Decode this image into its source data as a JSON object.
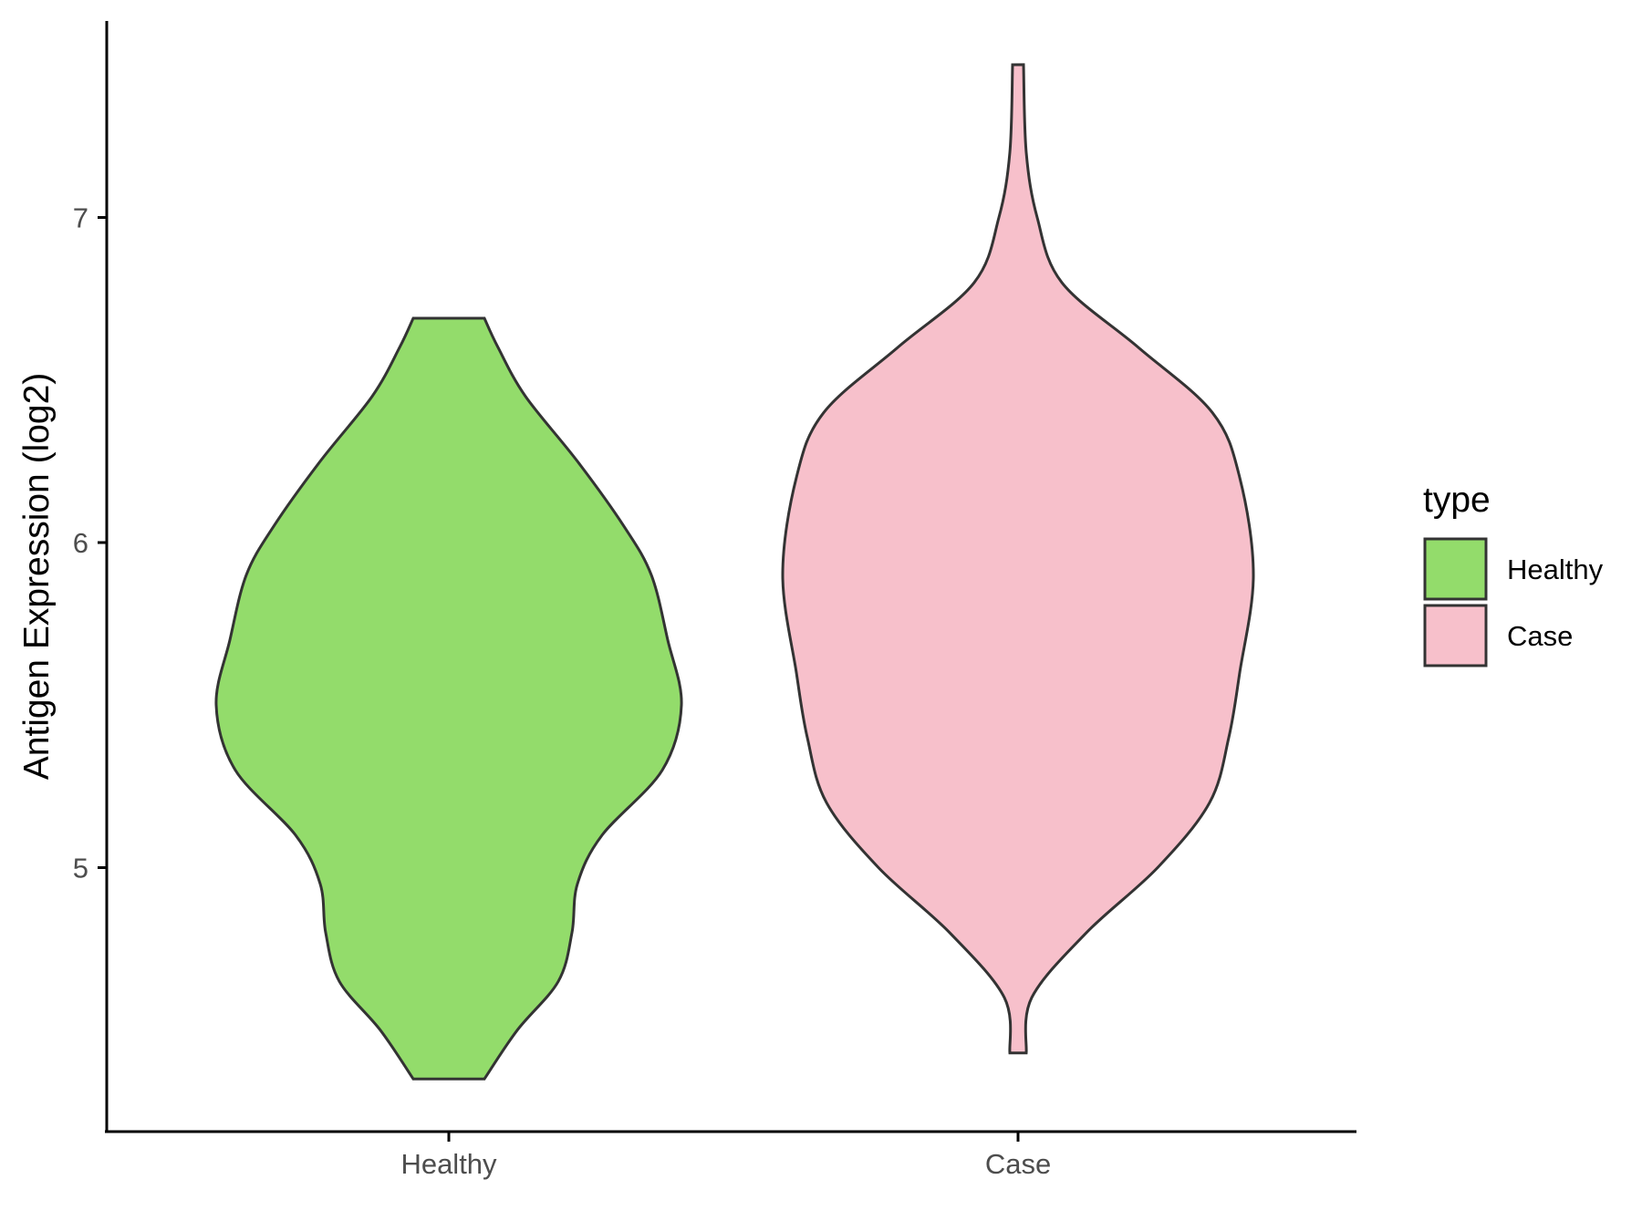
{
  "chart_data": {
    "type": "violin",
    "title": "",
    "xlabel": "",
    "ylabel": "Antigen Expression (log2)",
    "categories": [
      "Healthy",
      "Case"
    ],
    "y_ticks": [
      5,
      6,
      7
    ],
    "ylim": [
      4.2,
      7.6
    ],
    "grid": false,
    "legend": {
      "title": "type",
      "position": "right",
      "entries": [
        {
          "label": "Healthy",
          "color": "#93dc6b"
        },
        {
          "label": "Case",
          "color": "#f7c0cb"
        }
      ]
    },
    "series": [
      {
        "name": "Healthy",
        "color": "#93dc6b",
        "min": 4.35,
        "max": 6.69,
        "density_profile": [
          [
            4.35,
            0.13
          ],
          [
            4.5,
            0.25
          ],
          [
            4.65,
            0.4
          ],
          [
            4.8,
            0.45
          ],
          [
            4.95,
            0.47
          ],
          [
            5.1,
            0.56
          ],
          [
            5.3,
            0.78
          ],
          [
            5.5,
            0.85
          ],
          [
            5.7,
            0.8
          ],
          [
            5.9,
            0.74
          ],
          [
            6.05,
            0.64
          ],
          [
            6.25,
            0.47
          ],
          [
            6.45,
            0.28
          ],
          [
            6.6,
            0.18
          ],
          [
            6.69,
            0.13
          ]
        ]
      },
      {
        "name": "Case",
        "color": "#f7c0cb",
        "min": 4.43,
        "max": 7.47,
        "density_profile": [
          [
            4.43,
            0.03
          ],
          [
            4.6,
            0.05
          ],
          [
            4.8,
            0.25
          ],
          [
            5.0,
            0.51
          ],
          [
            5.2,
            0.7
          ],
          [
            5.4,
            0.77
          ],
          [
            5.6,
            0.81
          ],
          [
            5.9,
            0.86
          ],
          [
            6.2,
            0.81
          ],
          [
            6.4,
            0.71
          ],
          [
            6.6,
            0.44
          ],
          [
            6.8,
            0.16
          ],
          [
            7.0,
            0.07
          ],
          [
            7.2,
            0.03
          ],
          [
            7.47,
            0.02
          ]
        ]
      }
    ]
  }
}
